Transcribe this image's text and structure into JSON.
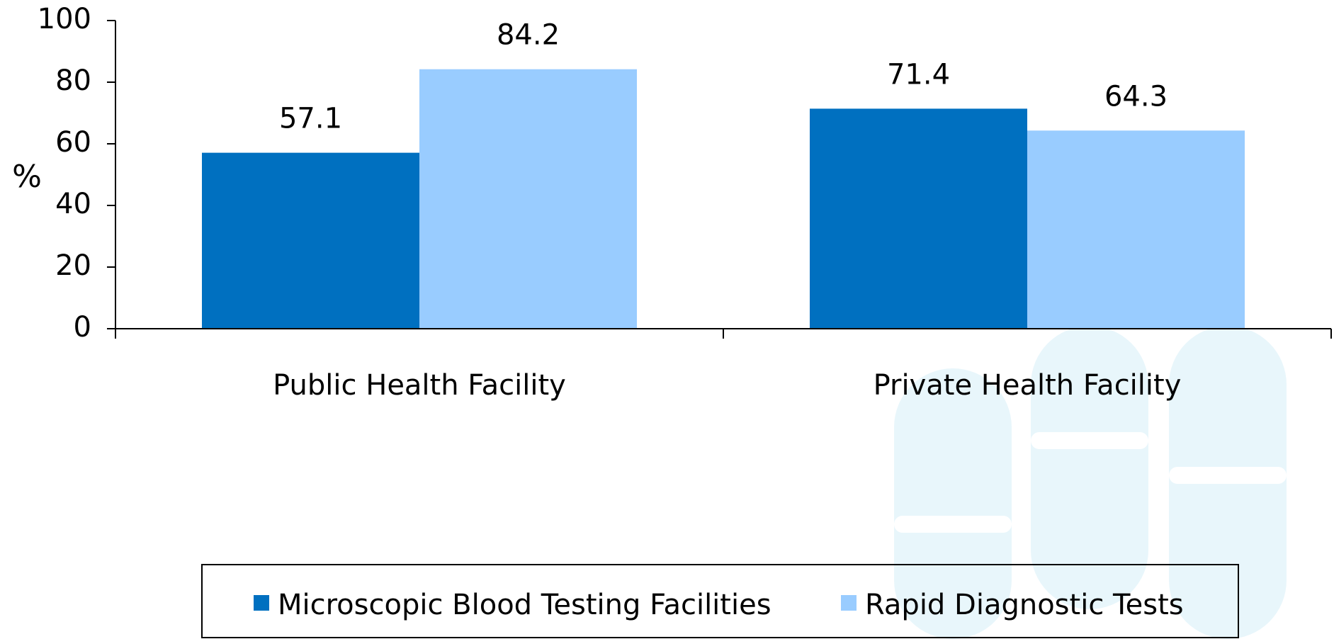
{
  "chart_data": {
    "type": "bar",
    "y_label": "%",
    "categories": [
      "Public Health Facility",
      "Private Health Facility"
    ],
    "series": [
      {
        "name": "Microscopic Blood Testing Facilities",
        "color": "#0070c0",
        "values": [
          57.1,
          71.4
        ]
      },
      {
        "name": "Rapid Diagnostic Tests",
        "color": "#99ccff",
        "values": [
          84.2,
          64.3
        ]
      }
    ],
    "ylim": [
      0,
      100
    ],
    "yticks": [
      0,
      20,
      40,
      60,
      80,
      100
    ],
    "grid": false,
    "legend": "bottom"
  }
}
